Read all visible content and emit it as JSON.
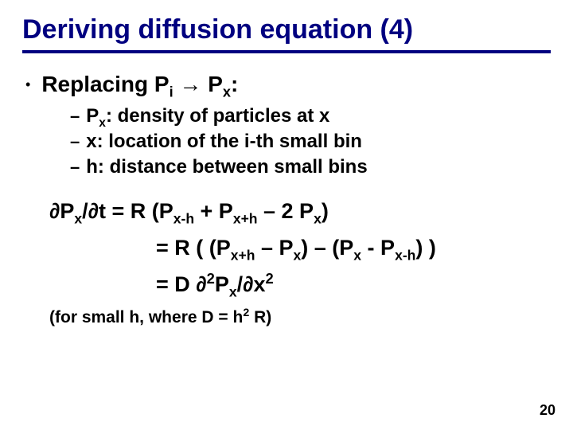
{
  "title": "Deriving diffusion equation (4)",
  "title_color": "#000080",
  "underline_color": "#000080",
  "text_color": "#000000",
  "background_color": "#ffffff",
  "font_family": "Comic Sans MS",
  "bullet": {
    "marker": "•",
    "prefix": "Replacing P",
    "sub1": "i",
    "arrow": " → P",
    "sub2": "x",
    "suffix": ":"
  },
  "subitems": [
    {
      "dash": "–",
      "pre": "P",
      "sub": "x",
      "post": ": density of particles at x"
    },
    {
      "dash": "–",
      "pre": "x: location of the i-th small bin",
      "sub": "",
      "post": ""
    },
    {
      "dash": "–",
      "pre": "h: distance between small bins",
      "sub": "",
      "post": ""
    }
  ],
  "equations": {
    "line1": {
      "lhs_p": "∂P",
      "lhs_sub": "x",
      "lhs_rest": "/∂t = R (P",
      "s1": "x-h",
      "m1": " + P",
      "s2": "x+h",
      "m2": " – 2 P",
      "s3": "x",
      "end": ")"
    },
    "line2": {
      "eq": "= R ( (P",
      "s1": "x+h",
      "m1": " – P",
      "s2": "x",
      "m2": ") – (P",
      "s3": "x",
      "m3": " - P",
      "s4": "x-h",
      "end": ") )"
    },
    "line3": {
      "eq": "= D ∂",
      "sup1": "2",
      "mid1": "P",
      "sub1": "x",
      "mid2": "/∂x",
      "sup2": "2"
    }
  },
  "note": {
    "pre": "(for small h, where D = h",
    "sup": "2",
    "post": " R)"
  },
  "page_number": "20"
}
